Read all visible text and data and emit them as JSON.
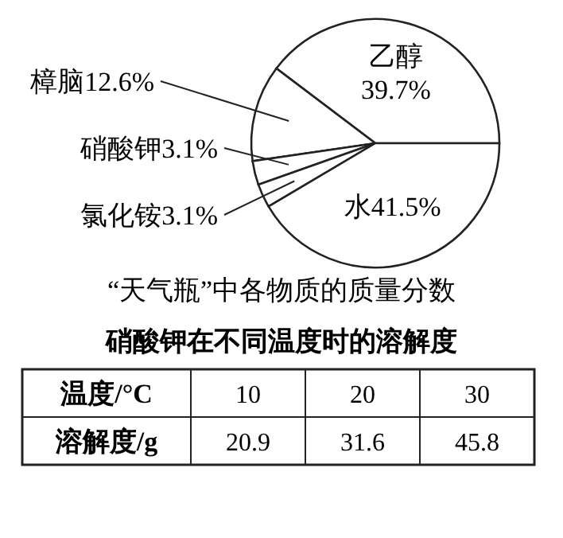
{
  "chart_data": [
    {
      "type": "pie",
      "title": "“天气瓶”中各物质的质量分数",
      "categories": [
        "乙醇",
        "樟脑",
        "硝酸钾",
        "氯化铵",
        "水"
      ],
      "values": [
        39.7,
        12.6,
        3.1,
        3.1,
        41.5
      ],
      "value_labels": [
        "39.7%",
        "12.6%",
        "3.1%",
        "3.1%",
        "41.5%"
      ],
      "colors": [
        "#ffffff",
        "#ffffff",
        "#ffffff",
        "#ffffff",
        "#ffffff"
      ]
    },
    {
      "type": "other",
      "title": "硝酸钾在不同温度时的溶解度",
      "xlabel": "温度/°C",
      "ylabel": "溶解度/g",
      "categories": [
        "10",
        "20",
        "30"
      ],
      "values": [
        20.9,
        31.6,
        45.8
      ],
      "value_labels": [
        "20.9",
        "31.6",
        "45.8"
      ]
    }
  ]
}
